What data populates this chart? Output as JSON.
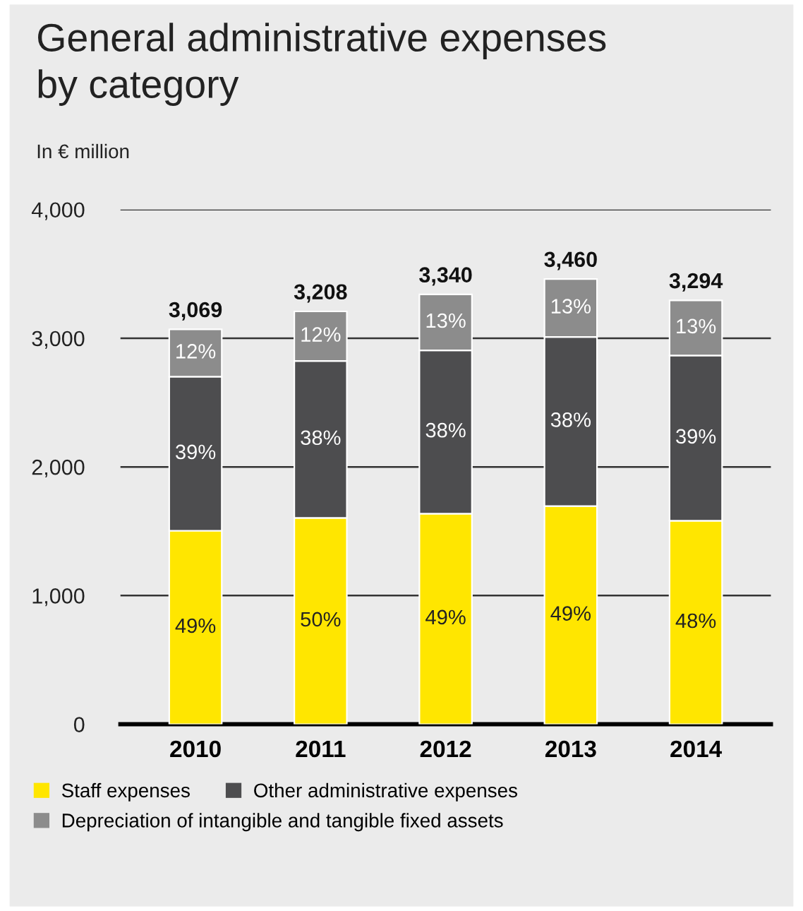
{
  "chart_data": {
    "type": "bar",
    "stacked": true,
    "title": "General administrative expenses\nby category",
    "subtitle": "In € million",
    "categories": [
      "2010",
      "2011",
      "2012",
      "2013",
      "2014"
    ],
    "series": [
      {
        "name": "Staff expenses",
        "color": "#ffe600",
        "values": [
          1504,
          1604,
          1637,
          1695,
          1581
        ]
      },
      {
        "name": "Other administrative expenses",
        "color": "#4d4d4f",
        "values": [
          1197,
          1219,
          1269,
          1315,
          1285
        ]
      },
      {
        "name": "Depreciation of intangible and tangible fixed assets",
        "color": "#8c8c8c",
        "values": [
          368,
          385,
          434,
          450,
          428
        ]
      }
    ],
    "annotations": [
      "49%",
      "50%",
      "49%",
      "49%",
      "48%",
      "39%",
      "38%",
      "38%",
      "38%",
      "39%",
      "12%",
      "12%",
      "13%",
      "13%",
      "13%"
    ],
    "totals": [
      "3,069",
      "3,208",
      "3,340",
      "3,460",
      "3,294"
    ],
    "ylim": [
      0,
      4000
    ],
    "yticks": [
      {
        "value": 0,
        "label": "0"
      },
      {
        "value": 1000,
        "label": "1,000"
      },
      {
        "value": 2000,
        "label": "2,000"
      },
      {
        "value": 3000,
        "label": "3,000"
      },
      {
        "value": 4000,
        "label": "4,000"
      }
    ],
    "grid": "y",
    "legend": "bottom"
  }
}
